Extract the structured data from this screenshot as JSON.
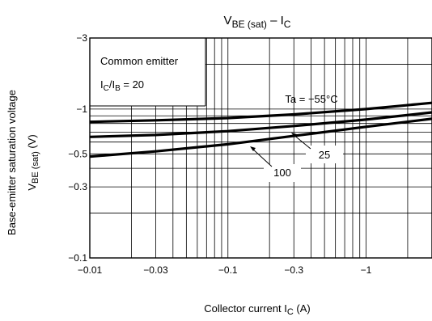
{
  "chart_data": {
    "type": "line",
    "title": {
      "main": "V",
      "main_sub": "BE (sat)",
      "sep": " – I",
      "sep_sub": "C"
    },
    "xlabel": {
      "text": "Collector current   I",
      "sub": "C",
      "unit": "   (A)"
    },
    "ylabel": {
      "line1": "Base-emitter saturation voltage",
      "line2_main": "V",
      "line2_sub": "BE (sat)",
      "line2_unit": "   (V)"
    },
    "x_scale": "log",
    "y_scale": "log",
    "xlim": [
      -0.01,
      -3
    ],
    "ylim": [
      -0.1,
      -3
    ],
    "x_ticks": [
      {
        "value": -0.01,
        "label": "−0.01"
      },
      {
        "value": -0.03,
        "label": "−0.03"
      },
      {
        "value": -0.1,
        "label": "−0.1"
      },
      {
        "value": -0.3,
        "label": "−0.3"
      },
      {
        "value": -1,
        "label": "−1"
      }
    ],
    "y_ticks": [
      {
        "value": -3,
        "label": "−3"
      },
      {
        "value": -1,
        "label": "−1"
      },
      {
        "value": -0.5,
        "label": "−0.5"
      },
      {
        "value": -0.3,
        "label": "−0.3"
      },
      {
        "value": -0.1,
        "label": "−0.1"
      }
    ],
    "grid": true,
    "annotation": {
      "line1": "Common emitter",
      "line2_a": "I",
      "line2_a_sub": "C",
      "line2_b": "/I",
      "line2_b_sub": "B",
      "line2_c": " = 20"
    },
    "series": [
      {
        "label": "Ta = −55°C",
        "x": [
          -0.01,
          -0.03,
          -0.1,
          -0.3,
          -1,
          -3
        ],
        "y": [
          -0.82,
          -0.84,
          -0.87,
          -0.92,
          -1.0,
          -1.1
        ]
      },
      {
        "label": "25",
        "x": [
          -0.01,
          -0.03,
          -0.1,
          -0.3,
          -1,
          -3
        ],
        "y": [
          -0.65,
          -0.67,
          -0.71,
          -0.77,
          -0.85,
          -0.95
        ]
      },
      {
        "label": "100",
        "x": [
          -0.01,
          -0.03,
          -0.1,
          -0.3,
          -1,
          -3
        ],
        "y": [
          -0.48,
          -0.52,
          -0.58,
          -0.66,
          -0.76,
          -0.86
        ]
      }
    ]
  }
}
